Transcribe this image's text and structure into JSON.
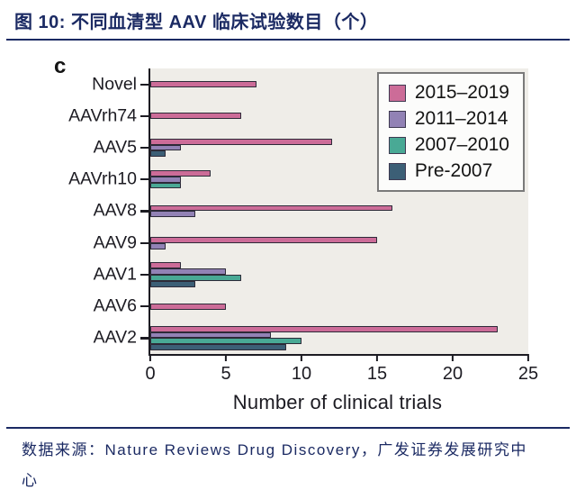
{
  "figure": {
    "title": "图 10:  不同血清型 AAV 临床试验数目（个）",
    "panel_label": "c",
    "source": "数据来源：Nature Reviews Drug Discovery，广发证券发展研究中心",
    "accent_color": "#1b2a63"
  },
  "chart_data": {
    "type": "bar",
    "orientation": "horizontal",
    "xlabel": "Number of clinical trials",
    "xlim": [
      0,
      25
    ],
    "xticks": [
      0,
      5,
      10,
      15,
      20,
      25
    ],
    "grid": false,
    "legend_position": "top-right",
    "plot_background": "#efede8",
    "bar_outline": "#2d2a38",
    "categories": [
      "Novel",
      "AAVrh74",
      "AAV5",
      "AAVrh10",
      "AAV8",
      "AAV9",
      "AAV1",
      "AAV6",
      "AAV2"
    ],
    "series": [
      {
        "name": "2015–2019",
        "color": "#cc6c98",
        "values": [
          7,
          6,
          12,
          4,
          16,
          15,
          2,
          5,
          23
        ]
      },
      {
        "name": "2011–2014",
        "color": "#9282b5",
        "values": [
          0,
          0,
          2,
          2,
          3,
          1,
          5,
          0,
          8
        ]
      },
      {
        "name": "2007–2010",
        "color": "#49a995",
        "values": [
          0,
          0,
          0,
          2,
          0,
          0,
          6,
          0,
          10
        ]
      },
      {
        "name": "Pre-2007",
        "color": "#3c5f76",
        "values": [
          0,
          0,
          1,
          0,
          0,
          0,
          3,
          0,
          9
        ]
      }
    ]
  }
}
